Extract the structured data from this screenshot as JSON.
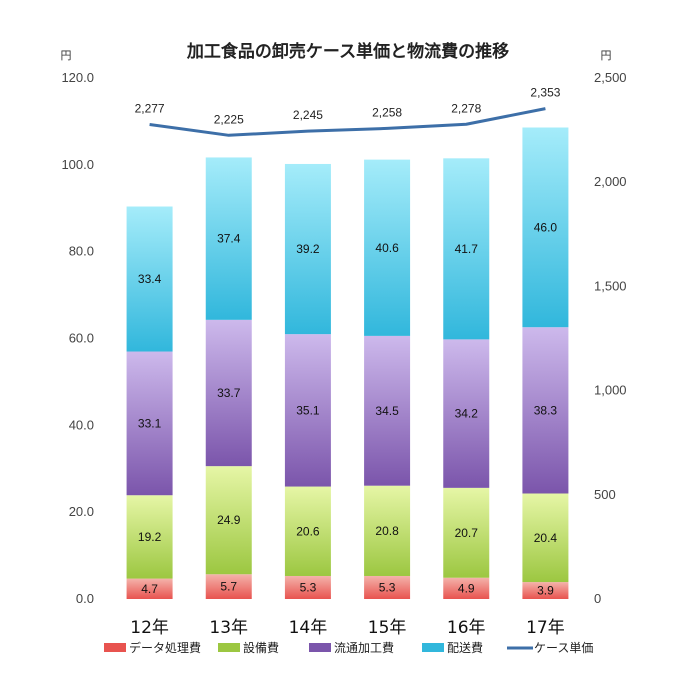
{
  "chart_data": {
    "type": "bar",
    "title": "加工食品の卸売ケース単価と物流費の推移",
    "y_unit_left": "円",
    "y_unit_right": "円",
    "categories": [
      "12年",
      "13年",
      "14年",
      "15年",
      "16年",
      "17年"
    ],
    "ylim_left": [
      0,
      120
    ],
    "yticks_left": [
      "0.0",
      "20.0",
      "40.0",
      "60.0",
      "80.0",
      "100.0",
      "120.0"
    ],
    "ylim_right": [
      0,
      2500
    ],
    "yticks_right": [
      "0",
      "500",
      "1,000",
      "1,500",
      "2,000",
      "2,500"
    ],
    "series": [
      {
        "name": "データ処理費",
        "kind": "bar",
        "axis": "left",
        "color": "#e8534f",
        "color_light": "#f4b3ab",
        "values": [
          4.7,
          5.7,
          5.3,
          5.3,
          4.9,
          3.9
        ],
        "labels": [
          "4.7",
          "5.7",
          "5.3",
          "5.3",
          "4.9",
          "3.9"
        ]
      },
      {
        "name": "設備費",
        "kind": "bar",
        "axis": "left",
        "color": "#9cc741",
        "color_light": "#e6f6a6",
        "values": [
          19.2,
          24.9,
          20.6,
          20.8,
          20.7,
          20.4
        ],
        "labels": [
          "19.2",
          "24.9",
          "20.6",
          "20.8",
          "20.7",
          "20.4"
        ]
      },
      {
        "name": "流通加工費",
        "kind": "bar",
        "axis": "left",
        "color": "#7b55ab",
        "color_light": "#cdb9ec",
        "values": [
          33.1,
          33.7,
          35.1,
          34.5,
          34.2,
          38.3
        ],
        "labels": [
          "33.1",
          "33.7",
          "35.1",
          "34.5",
          "34.2",
          "38.3"
        ]
      },
      {
        "name": "配送費",
        "kind": "bar",
        "axis": "left",
        "color": "#31b7dc",
        "color_light": "#a5ecfa",
        "values": [
          33.4,
          37.4,
          39.2,
          40.6,
          41.7,
          46.0
        ],
        "labels": [
          "33.4",
          "37.4",
          "39.2",
          "40.6",
          "41.7",
          "46.0"
        ]
      },
      {
        "name": "ケース単価",
        "kind": "line",
        "axis": "right",
        "color": "#3d6fa8",
        "values": [
          2277,
          2225,
          2245,
          2258,
          2278,
          2353
        ],
        "labels": [
          "2,277",
          "2,225",
          "2,245",
          "2,258",
          "2,278",
          "2,353"
        ]
      }
    ],
    "grid": false,
    "legend_position": "bottom"
  }
}
